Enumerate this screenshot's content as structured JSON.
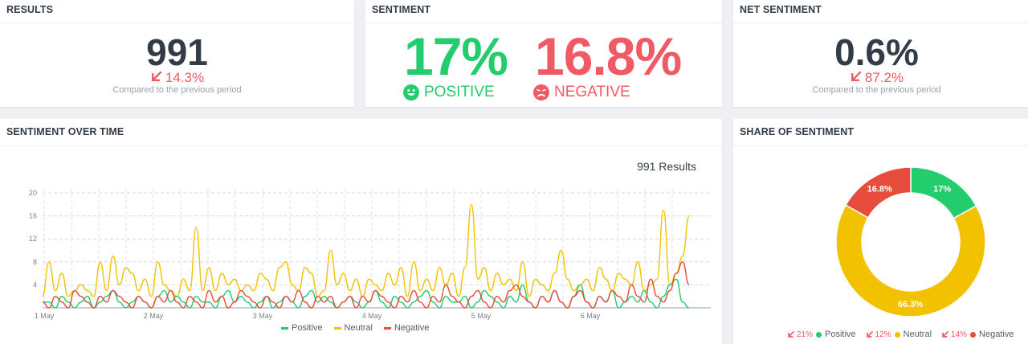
{
  "results": {
    "title": "RESULTS",
    "value": "991",
    "change": "14.3%",
    "sub": "Compared to the previous period"
  },
  "sentiment": {
    "title": "SENTIMENT",
    "positive_pct": "17%",
    "positive_label": "POSITIVE",
    "negative_pct": "16.8%",
    "negative_label": "NEGATIVE",
    "colors": {
      "positive": "#23cc6d",
      "negative": "#f05a64"
    }
  },
  "net": {
    "title": "NET SENTIMENT",
    "value": "0.6%",
    "change": "87.2%",
    "sub": "Compared to the previous period"
  },
  "timeline": {
    "title": "SENTIMENT OVER TIME",
    "results_label": "991 Results",
    "legend": [
      "Positive",
      "Neutral",
      "Negative"
    ]
  },
  "share": {
    "title": "SHARE OF SENTIMENT",
    "legend": [
      {
        "change": "21%",
        "label": "Positive"
      },
      {
        "change": "12%",
        "label": "Neutral"
      },
      {
        "change": "14%",
        "label": "Negative"
      }
    ]
  },
  "chart_data": [
    {
      "type": "line",
      "title": "",
      "xlabel": "",
      "ylabel": "",
      "xticks": [
        "1 May",
        "2 May",
        "3 May",
        "4 May",
        "5 May",
        "6 May"
      ],
      "yticks": [
        4,
        8,
        12,
        16,
        20
      ],
      "ylim": [
        0,
        22
      ],
      "grid": true,
      "legend_position": "bottom",
      "series": [
        {
          "name": "Positive",
          "color": "#23cc6d",
          "values": [
            1,
            1,
            0,
            2,
            1,
            0,
            1,
            2,
            0,
            1,
            2,
            3,
            1,
            0,
            1,
            2,
            1,
            0,
            2,
            3,
            1,
            2,
            1,
            0,
            2,
            1,
            1,
            0,
            2,
            3,
            1,
            2,
            1,
            0,
            1,
            2,
            0,
            1,
            2,
            1,
            0,
            2,
            3,
            1,
            2,
            1,
            0,
            1,
            2,
            1,
            0,
            1,
            3,
            1,
            0,
            2,
            1,
            0,
            1,
            2,
            3,
            1,
            0,
            2,
            1,
            1,
            2,
            0,
            1,
            3,
            2,
            1,
            0,
            2,
            1,
            4,
            1,
            0,
            2,
            1,
            3,
            1,
            0,
            2,
            4,
            1,
            0,
            2,
            1,
            3,
            0,
            1,
            2,
            1,
            3,
            1,
            0,
            2,
            4,
            5,
            1,
            0
          ]
        },
        {
          "name": "Neutral",
          "color": "#f2c200",
          "values": [
            2,
            8,
            3,
            6,
            2,
            3,
            4,
            3,
            2,
            8,
            3,
            9,
            4,
            7,
            6,
            3,
            5,
            2,
            8,
            4,
            3,
            2,
            5,
            3,
            14,
            3,
            7,
            3,
            6,
            4,
            5,
            3,
            4,
            3,
            6,
            5,
            3,
            7,
            8,
            4,
            3,
            7,
            6,
            2,
            3,
            10,
            4,
            6,
            3,
            5,
            2,
            5,
            4,
            3,
            6,
            4,
            7,
            2,
            8,
            3,
            5,
            3,
            7,
            4,
            6,
            2,
            7,
            18,
            5,
            7,
            3,
            6,
            4,
            5,
            3,
            8,
            2,
            5,
            4,
            3,
            6,
            10,
            5,
            3,
            4,
            5,
            3,
            7,
            5,
            3,
            6,
            5,
            4,
            8,
            3,
            4,
            5,
            17,
            4,
            6,
            9,
            16
          ]
        },
        {
          "name": "Negative",
          "color": "#e74c3c",
          "values": [
            1,
            0,
            2,
            1,
            0,
            3,
            2,
            1,
            0,
            2,
            1,
            3,
            2,
            1,
            0,
            2,
            1,
            0,
            2,
            1,
            3,
            1,
            0,
            2,
            1,
            0,
            3,
            1,
            2,
            0,
            1,
            3,
            2,
            1,
            0,
            2,
            1,
            0,
            2,
            1,
            3,
            1,
            0,
            2,
            1,
            2,
            0,
            1,
            2,
            0,
            2,
            1,
            3,
            2,
            1,
            0,
            2,
            1,
            3,
            1,
            0,
            2,
            1,
            4,
            2,
            1,
            0,
            2,
            3,
            1,
            0,
            2,
            1,
            3,
            4,
            2,
            1,
            0,
            2,
            1,
            3,
            1,
            0,
            2,
            3,
            1,
            0,
            2,
            1,
            3,
            2,
            1,
            4,
            2,
            1,
            5,
            2,
            1,
            3,
            6,
            8,
            4
          ]
        }
      ]
    },
    {
      "type": "pie",
      "title": "",
      "donut": true,
      "slices": [
        {
          "label": "Positive",
          "value": 17,
          "display": "17%",
          "color": "#23cc6d"
        },
        {
          "label": "Neutral",
          "value": 66.3,
          "display": "66.3%",
          "color": "#f2c200"
        },
        {
          "label": "Negative",
          "value": 16.8,
          "display": "16.8%",
          "color": "#e74c3c"
        }
      ]
    }
  ]
}
